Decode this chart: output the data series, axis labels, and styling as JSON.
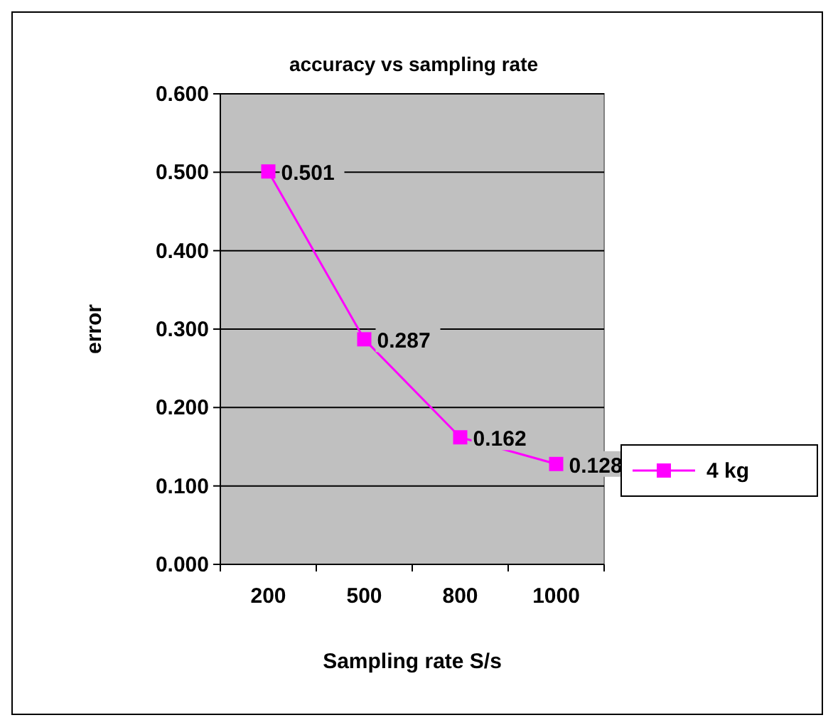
{
  "chart_data": {
    "type": "line",
    "title": "accuracy vs sampling rate",
    "xlabel": "Sampling rate S/s",
    "ylabel": "error",
    "categories": [
      "200",
      "500",
      "800",
      "1000"
    ],
    "series": [
      {
        "name": "4 kg",
        "color": "#ff00ff",
        "values": [
          0.501,
          0.287,
          0.162,
          0.128
        ],
        "value_labels": [
          "0.501",
          "0.287",
          "0.162",
          "0.128"
        ]
      }
    ],
    "ylim": [
      0,
      0.6
    ],
    "yticks": [
      {
        "value": 0,
        "label": "0.000"
      },
      {
        "value": 0.1,
        "label": "0.100"
      },
      {
        "value": 0.2,
        "label": "0.200"
      },
      {
        "value": 0.3,
        "label": "0.300"
      },
      {
        "value": 0.4,
        "label": "0.400"
      },
      {
        "value": 0.5,
        "label": "0.500"
      },
      {
        "value": 0.6,
        "label": "0.600"
      }
    ],
    "grid": "y",
    "legend": "right",
    "marker": "square",
    "line_style": "solid"
  }
}
